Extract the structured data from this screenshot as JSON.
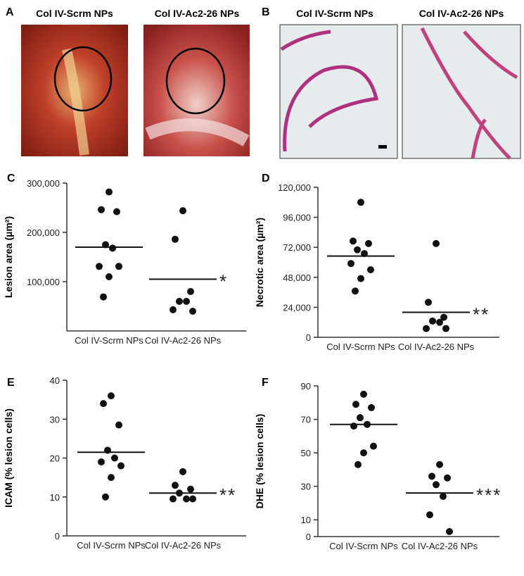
{
  "panels": [
    {
      "letter": "A",
      "titles": [
        "Col IV-Scrm NPs",
        "Col IV-Ac2-26 NPs"
      ]
    },
    {
      "letter": "B",
      "titles": [
        "Col IV-Scrm NPs",
        "Col IV-Ac2-26 NPs"
      ]
    }
  ],
  "chart_data": [
    {
      "type": "strip",
      "panel": "C",
      "ylabel": "Lesion area (µm²)",
      "color": "#111111",
      "categories": [
        "Col IV-Scrm NPs",
        "Col IV-Ac2-26 NPs"
      ],
      "values": [
        [
          282000,
          246000,
          242000,
          175000,
          168000,
          131000,
          131000,
          110000,
          69000
        ],
        [
          244000,
          186000,
          80000,
          60000,
          60000,
          43000,
          40000
        ]
      ],
      "means": [
        170000,
        105000
      ],
      "annotation": "*",
      "ylim": [
        0,
        300000
      ],
      "yticks": [
        {
          "value": 100000,
          "label": "100,000"
        },
        {
          "value": 200000,
          "label": "200,000"
        },
        {
          "value": 300000,
          "label": "300,000"
        }
      ]
    },
    {
      "type": "strip",
      "panel": "D",
      "ylabel": "Necrotic area (µm²)",
      "color": "#111111",
      "categories": [
        "Col IV-Scrm NPs",
        "Col IV-Ac2-26 NPs"
      ],
      "values": [
        [
          108000,
          77000,
          75000,
          70000,
          67000,
          59000,
          54000,
          47000,
          37000
        ],
        [
          75000,
          28000,
          16000,
          13000,
          12000,
          7000,
          7000
        ]
      ],
      "means": [
        65000,
        20000
      ],
      "annotation": "**",
      "ylim": [
        0,
        120000
      ],
      "yticks": [
        0,
        {
          "value": 24000,
          "label": "24,000"
        },
        {
          "value": 48000,
          "label": "48,000"
        },
        {
          "value": 72000,
          "label": "72,000"
        },
        {
          "value": 96000,
          "label": "96,000"
        },
        {
          "value": 120000,
          "label": "120,000"
        }
      ]
    },
    {
      "type": "strip",
      "panel": "E",
      "ylabel": "ICAM (% lesion cells)",
      "color": "#111111",
      "categories": [
        "Col IV-Scrm NPs",
        "Col IV-Ac2-26 NPs"
      ],
      "values": [
        [
          36,
          34,
          28.5,
          22,
          20,
          19,
          18,
          15,
          10
        ],
        [
          16.5,
          13,
          12,
          11,
          9.5,
          9.5,
          9.5
        ]
      ],
      "means": [
        21.5,
        11
      ],
      "annotation": "**",
      "ylim": [
        0,
        40
      ],
      "yticks": [
        0,
        10,
        20,
        30,
        40
      ]
    },
    {
      "type": "strip",
      "panel": "F",
      "ylabel": "DHE (% lesion cells)",
      "color": "#111111",
      "categories": [
        "Col IV-Scrm NPs",
        "Col IV-Ac2-26 NPs"
      ],
      "values": [
        [
          85,
          79,
          77,
          71,
          67,
          66,
          54,
          50,
          43
        ],
        [
          43,
          36,
          35,
          31,
          24,
          13,
          3
        ]
      ],
      "means": [
        67,
        26
      ],
      "annotation": "***",
      "ylim": [
        0,
        90
      ],
      "yticks": [
        0,
        10,
        30,
        50,
        70,
        90
      ]
    }
  ]
}
